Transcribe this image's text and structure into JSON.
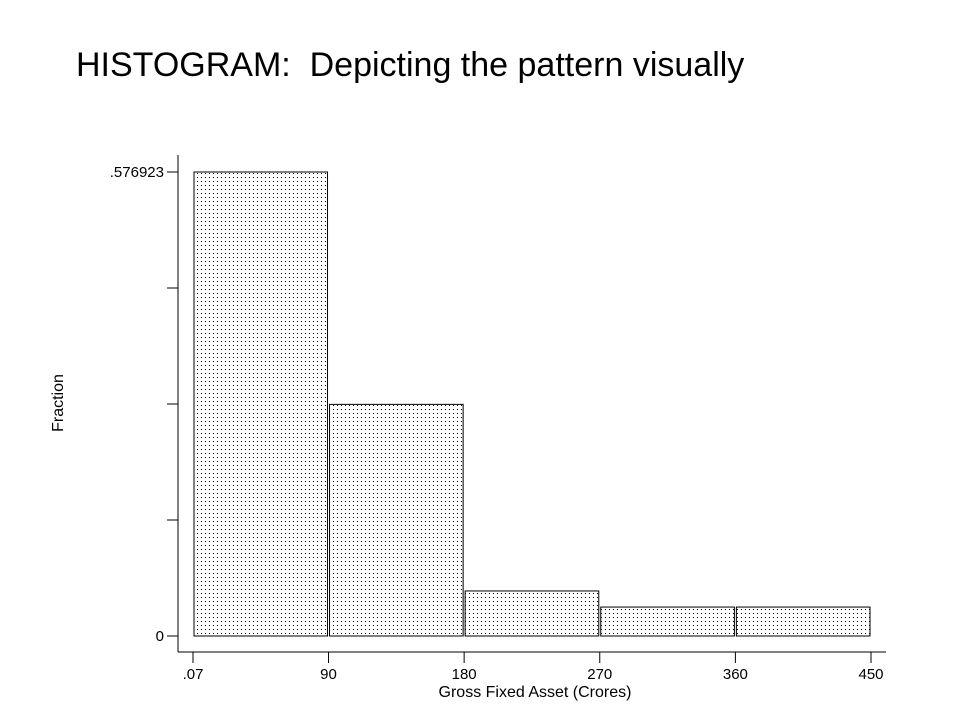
{
  "title": "HISTOGRAM:  Depicting the pattern visually",
  "chart_data": {
    "type": "bar",
    "title": "",
    "xlabel": "Gross Fixed Asset (Crores)",
    "ylabel": "Fraction",
    "bins": [
      {
        "from": 0.07,
        "to": 90,
        "value": 0.576923
      },
      {
        "from": 90,
        "to": 180,
        "value": 0.288
      },
      {
        "from": 180,
        "to": 270,
        "value": 0.056
      },
      {
        "from": 270,
        "to": 360,
        "value": 0.036
      },
      {
        "from": 360,
        "to": 450,
        "value": 0.036
      }
    ],
    "x_ticks": [
      ".07",
      "90",
      "180",
      "270",
      "360",
      "450"
    ],
    "x_tick_values": [
      0.07,
      90,
      180,
      270,
      360,
      450
    ],
    "y_tick_labels": [
      ".576923",
      "0"
    ],
    "y_tick_label_values": [
      0.576923,
      0
    ],
    "y_minor_ticks": [
      0.144231,
      0.288462,
      0.432692
    ],
    "xlim": [
      0.07,
      450
    ],
    "ylim": [
      0,
      0.576923
    ],
    "bar_fill": "dotted",
    "grid": false,
    "legend": "none"
  }
}
